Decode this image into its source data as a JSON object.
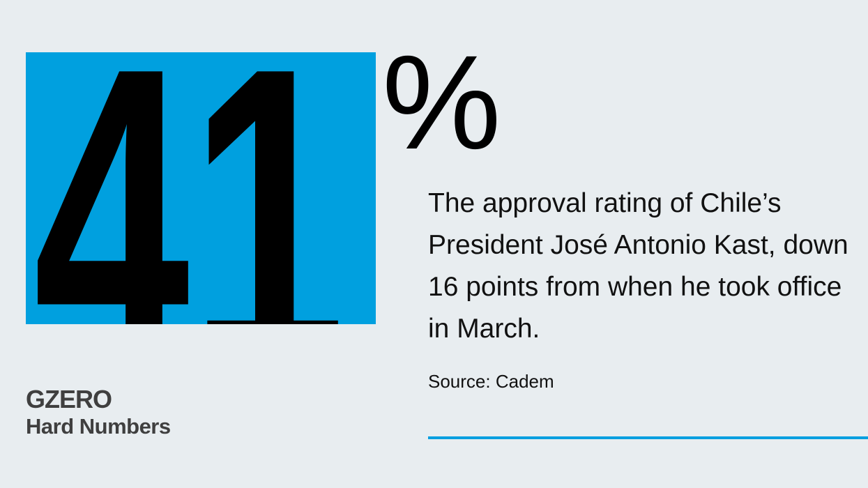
{
  "figure": {
    "number": 41,
    "unit": "%"
  },
  "description": "The approval rating of Chile’s President José Antonio Kast, down 16 points from when he took office in March.",
  "source": "Source: Cadem",
  "brand": {
    "name": "GZERO",
    "series": "Hard Numbers"
  }
}
